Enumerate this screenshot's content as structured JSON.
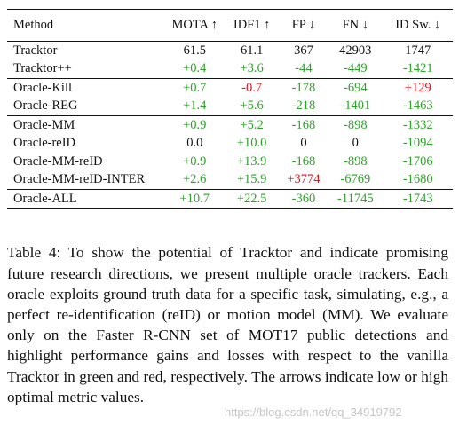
{
  "table": {
    "headers": [
      "Method",
      "MOTA ↑",
      "IDF1 ↑",
      "FP ↓",
      "FN ↓",
      "ID Sw. ↓"
    ],
    "groups": [
      [
        {
          "method": "Tracktor",
          "cells": [
            {
              "v": "61.5",
              "c": "neutral"
            },
            {
              "v": "61.1",
              "c": "neutral"
            },
            {
              "v": "367",
              "c": "neutral"
            },
            {
              "v": "42903",
              "c": "neutral"
            },
            {
              "v": "1747",
              "c": "neutral"
            }
          ]
        },
        {
          "method": "Tracktor++",
          "cells": [
            {
              "v": "+0.4",
              "c": "pos"
            },
            {
              "v": "+3.6",
              "c": "pos"
            },
            {
              "v": "-44",
              "c": "pos"
            },
            {
              "v": "-449",
              "c": "pos"
            },
            {
              "v": "-1421",
              "c": "pos"
            }
          ]
        }
      ],
      [
        {
          "method": "Oracle-Kill",
          "cells": [
            {
              "v": "+0.7",
              "c": "pos"
            },
            {
              "v": "-0.7",
              "c": "neg"
            },
            {
              "v": "-178",
              "c": "pos"
            },
            {
              "v": "-694",
              "c": "pos"
            },
            {
              "v": "+129",
              "c": "neg"
            }
          ]
        },
        {
          "method": "Oracle-REG",
          "cells": [
            {
              "v": "+1.4",
              "c": "pos"
            },
            {
              "v": "+5.6",
              "c": "pos"
            },
            {
              "v": "-218",
              "c": "pos"
            },
            {
              "v": "-1401",
              "c": "pos"
            },
            {
              "v": "-1463",
              "c": "pos"
            }
          ]
        }
      ],
      [
        {
          "method": "Oracle-MM",
          "cells": [
            {
              "v": "+0.9",
              "c": "pos"
            },
            {
              "v": "+5.2",
              "c": "pos"
            },
            {
              "v": "-168",
              "c": "pos"
            },
            {
              "v": "-898",
              "c": "pos"
            },
            {
              "v": "-1332",
              "c": "pos"
            }
          ]
        },
        {
          "method": "Oracle-reID",
          "cells": [
            {
              "v": "0.0",
              "c": "neutral"
            },
            {
              "v": "+10.0",
              "c": "pos"
            },
            {
              "v": "0",
              "c": "neutral"
            },
            {
              "v": "0",
              "c": "neutral"
            },
            {
              "v": "-1094",
              "c": "pos"
            }
          ]
        },
        {
          "method": "Oracle-MM-reID",
          "cells": [
            {
              "v": "+0.9",
              "c": "pos"
            },
            {
              "v": "+13.9",
              "c": "pos"
            },
            {
              "v": "-168",
              "c": "pos"
            },
            {
              "v": "-898",
              "c": "pos"
            },
            {
              "v": "-1706",
              "c": "pos"
            }
          ]
        },
        {
          "method": "Oracle-MM-reID-INTER",
          "cells": [
            {
              "v": "+2.6",
              "c": "pos"
            },
            {
              "v": "+15.9",
              "c": "pos"
            },
            {
              "v": "+3774",
              "c": "neg"
            },
            {
              "v": "-6769",
              "c": "pos"
            },
            {
              "v": "-1680",
              "c": "pos"
            }
          ]
        }
      ],
      [
        {
          "method": "Oracle-ALL",
          "cells": [
            {
              "v": "+10.7",
              "c": "pos"
            },
            {
              "v": "+22.5",
              "c": "pos"
            },
            {
              "v": "-360",
              "c": "pos"
            },
            {
              "v": "-11745",
              "c": "pos"
            },
            {
              "v": "-1743",
              "c": "pos"
            }
          ]
        }
      ]
    ]
  },
  "caption": "Table 4: To show the potential of Tracktor and indicate promising future research directions, we present multiple oracle trackers. Each oracle exploits ground truth data for a specific task, simulating, e.g., a perfect re-identification (reID) or motion model (MM). We evaluate only on the Faster R-CNN set of MOT17 public detections and highlight performance gains and losses with respect to the vanilla Tracktor in green and red, respectively. The arrows indicate low or high optimal metric values.",
  "watermark": "https://blog.csdn.net/qq_34919792",
  "colors": {
    "gain": "#2ea32a",
    "loss": "#e0161e"
  }
}
